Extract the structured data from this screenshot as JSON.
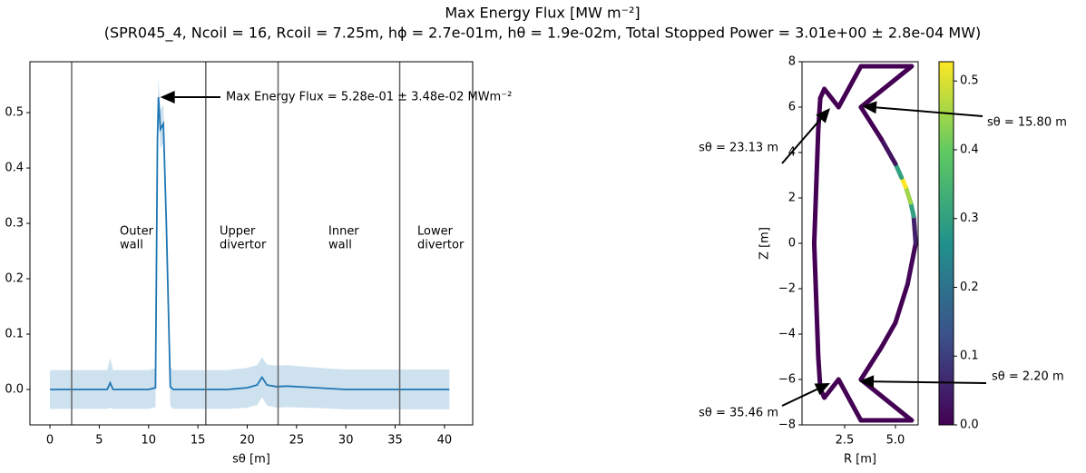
{
  "figure": {
    "title": "Max Energy Flux [MW m⁻²]",
    "subtitle": "(SPR045_4, Ncoil = 16, Rcoil = 7.25m, hϕ = 2.7e-01m, hθ = 1.9e-02m, Total Stopped Power = 3.01e+00 ± 2.8e-04 MW)"
  },
  "chart_data": [
    {
      "type": "line",
      "x_label": "sθ [m]",
      "color": "#1f77b4",
      "band_color": "#1f77b4",
      "x": [
        0,
        2,
        4,
        5.8,
        6.1,
        6.4,
        8,
        10,
        10.7,
        10.9,
        11.0,
        11.2,
        11.5,
        11.8,
        12.2,
        12.5,
        14,
        16,
        18,
        20,
        21,
        21.5,
        22,
        23,
        24,
        26,
        28,
        30,
        32,
        34,
        36,
        38,
        40,
        40.5
      ],
      "values": [
        0,
        0,
        0,
        0,
        0.012,
        0,
        0,
        0,
        0.003,
        0.45,
        0.528,
        0.47,
        0.48,
        0.3,
        0.005,
        0,
        0,
        0,
        0,
        0.003,
        0.008,
        0.022,
        0.008,
        0.005,
        0.006,
        0.004,
        0.002,
        0,
        0,
        0,
        0,
        0,
        0,
        0
      ],
      "errors": [
        0.035,
        0.035,
        0.035,
        0.035,
        0.045,
        0.035,
        0.035,
        0.035,
        0.035,
        0.035,
        0.035,
        0.035,
        0.035,
        0.035,
        0.035,
        0.035,
        0.035,
        0.035,
        0.035,
        0.036,
        0.036,
        0.036,
        0.037,
        0.038,
        0.038,
        0.037,
        0.036,
        0.036,
        0.036,
        0.036,
        0.036,
        0.036,
        0.036,
        0.036
      ],
      "xlim": [
        -2.03,
        42.86
      ],
      "ylim": [
        -0.064,
        0.592
      ],
      "xticks": [
        0,
        5,
        10,
        15,
        20,
        25,
        30,
        35,
        40
      ],
      "yticks": [
        {
          "value": 0,
          "label": "0.0"
        },
        0.1,
        0.2,
        0.3,
        0.4,
        0.5
      ],
      "vlines": [
        2.2,
        15.8,
        23.13,
        35.46
      ],
      "region_labels": [
        [
          "Outer",
          "wall"
        ],
        [
          "Upper",
          "divertor"
        ],
        [
          "Inner",
          "wall"
        ],
        [
          "Lower",
          "divertor"
        ]
      ],
      "annotation": "Max Energy Flux = 5.28e-01 ± 3.48e-02 MWm⁻²"
    },
    {
      "type": "wall",
      "x_label": "R [m]",
      "y_label": "Z [m]",
      "colormap": "viridis",
      "R": [
        3.3,
        4.3,
        5.0,
        5.6,
        6.0,
        5.9,
        5.75,
        5.5,
        5.3,
        5.0,
        4.3,
        3.3,
        5.8,
        3.3,
        2.2,
        1.5,
        1.3,
        1.2,
        1.0,
        1.2,
        1.3,
        1.5,
        2.2,
        3.3,
        5.8
      ],
      "Z": [
        -6.0,
        -4.6,
        -3.5,
        -1.8,
        0,
        1.2,
        1.8,
        2.5,
        2.9,
        3.5,
        4.6,
        6.0,
        7.8,
        7.8,
        6.0,
        6.8,
        6.4,
        5.0,
        0,
        -5.0,
        -6.4,
        -6.8,
        -6.0,
        -7.8,
        -7.8
      ],
      "flux": [
        0.0,
        0.0,
        0.0,
        0.01,
        0.05,
        0.3,
        0.45,
        0.528,
        0.3,
        0.03,
        0.0,
        0.0,
        0.0,
        0.0,
        0.0,
        0.0,
        0.0,
        0.0,
        0.0,
        0.0,
        0.0,
        0.0,
        0.0,
        0.0,
        0.0
      ],
      "xlim": [
        0.4,
        6.12
      ],
      "ylim": [
        -8,
        8
      ],
      "xticks": [
        2.5,
        {
          "value": 5,
          "label": "5.0"
        }
      ],
      "yticks": [
        {
          "value": -8,
          "label": "−8"
        },
        {
          "value": -6,
          "label": "−6"
        },
        {
          "value": -4,
          "label": "−4"
        },
        {
          "value": -2,
          "label": "−2"
        },
        0,
        2,
        4,
        6,
        8
      ],
      "clim": [
        0,
        0.528
      ],
      "cticks": [
        {
          "value": 0,
          "label": "0.0"
        },
        0.1,
        0.2,
        0.3,
        0.4,
        0.5
      ],
      "annotations": [
        "sθ = 15.80 m",
        "sθ = 23.13 m",
        "sθ = 2.20 m",
        "sθ = 35.46 m"
      ]
    }
  ]
}
